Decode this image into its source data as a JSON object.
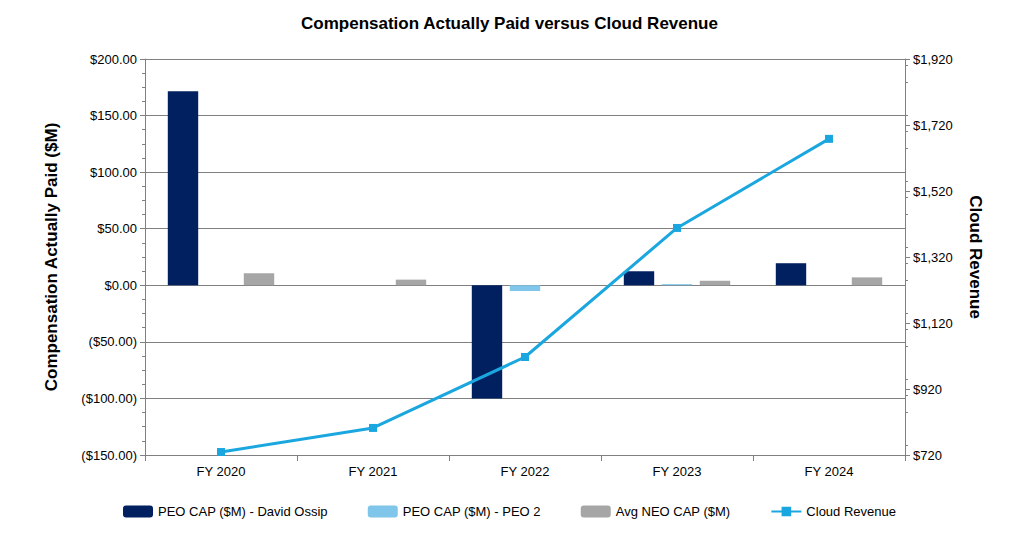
{
  "chart_data": {
    "type": "bar",
    "title": "Compensation Actually Paid versus Cloud Revenue",
    "y_label": "Compensation Actually Paid ($M)",
    "y2_label": "Cloud Revenue",
    "categories": [
      "FY 2020",
      "FY 2021",
      "FY 2022",
      "FY 2023",
      "FY 2024"
    ],
    "series": [
      {
        "name": "PEO CAP ($M) - David Ossip",
        "type": "bar",
        "color": "#002060",
        "values": [
          171.5,
          null,
          -100,
          12.4,
          19.5
        ]
      },
      {
        "name": "PEO CAP ($M) - PEO 2",
        "type": "bar",
        "color": "#7fc6ea",
        "values": [
          null,
          null,
          -5,
          1,
          null
        ]
      },
      {
        "name": "Avg NEO CAP ($M)",
        "type": "bar",
        "color": "#a6a6a6",
        "values": [
          10.6,
          5,
          null,
          4,
          7
        ]
      },
      {
        "name": "Cloud Revenue",
        "type": "line",
        "axis": "y2",
        "color": "#1aa7e0",
        "marker": "square",
        "line_style": "solid",
        "values": [
          729,
          802,
          1017,
          1408,
          1678
        ]
      }
    ],
    "ylim": [
      -150,
      200
    ],
    "yticks": [
      {
        "value": -150,
        "label": "($150.00)"
      },
      {
        "value": -100,
        "label": "($100.00)"
      },
      {
        "value": -50,
        "label": "($50.00)"
      },
      {
        "value": 0,
        "label": "$0.00"
      },
      {
        "value": 50,
        "label": "$50.00"
      },
      {
        "value": 100,
        "label": "$100.00"
      },
      {
        "value": 150,
        "label": "$150.00"
      },
      {
        "value": 200,
        "label": "$200.00"
      }
    ],
    "y2lim": [
      720,
      1920
    ],
    "y2ticks": [
      {
        "value": 720,
        "label": "$720"
      },
      {
        "value": 920,
        "label": "$920"
      },
      {
        "value": 1120,
        "label": "$1,120"
      },
      {
        "value": 1320,
        "label": "$1,320"
      },
      {
        "value": 1520,
        "label": "$1,520"
      },
      {
        "value": 1720,
        "label": "$1,720"
      },
      {
        "value": 1920,
        "label": "$1,920"
      }
    ],
    "grid": true,
    "legend": "bottom"
  }
}
